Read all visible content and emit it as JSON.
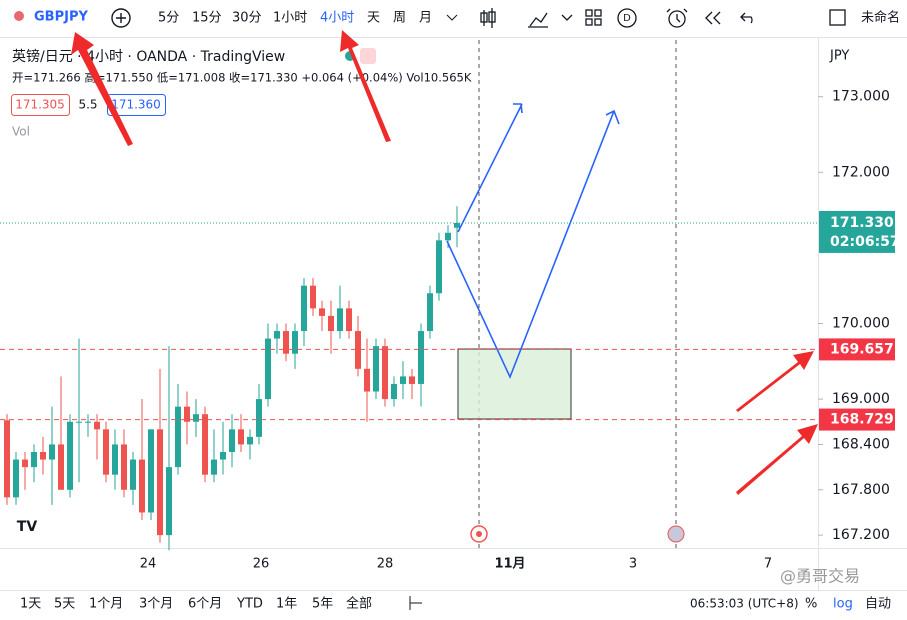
{
  "toolbar": {
    "symbol": "GBPJPY",
    "intervals": [
      "5分",
      "15分",
      "30分",
      "1小时",
      "4小时",
      "天",
      "周",
      "月"
    ],
    "layout_name": "未命名",
    "indicator_badge": "D"
  },
  "legend": {
    "title": "英镑/日元 · 4小时 · OANDA · TradingView",
    "ohlc": "开=171.266 高=171.550 低=171.008 收=171.330 +0.064 (+0.04%) Vol10.565K",
    "bid": "171.305",
    "spread": "5.5",
    "ask": "171.360",
    "vol": "Vol"
  },
  "chart_data": {
    "type": "candlestick",
    "currency": "JPY",
    "up_color": "#26a69a",
    "down_color": "#ef5350",
    "open": [
      168.72,
      167.7,
      168.2,
      168.1,
      168.3,
      168.2,
      168.4,
      167.8,
      168.7,
      168.7,
      168.7,
      168.6,
      168.0,
      168.4,
      167.8,
      168.2,
      167.5,
      168.6,
      167.2,
      168.1,
      168.9,
      168.7,
      168.8,
      168.0,
      168.2,
      168.3,
      168.6,
      168.4,
      168.5,
      169.0,
      169.8,
      169.9,
      169.6,
      169.9,
      170.5,
      170.2,
      170.1,
      169.9,
      170.2,
      169.9,
      169.4,
      169.1,
      169.7,
      169.0,
      169.2,
      169.3,
      169.2,
      169.9,
      170.4,
      171.1,
      171.266
    ],
    "high": [
      168.8,
      168.3,
      168.3,
      168.4,
      168.5,
      168.9,
      169.3,
      168.8,
      169.8,
      168.8,
      168.8,
      168.7,
      168.6,
      168.6,
      168.3,
      169.0,
      168.6,
      169.4,
      169.7,
      169.2,
      169.1,
      169.0,
      168.9,
      168.6,
      168.7,
      168.8,
      168.8,
      168.6,
      169.2,
      170.0,
      170.0,
      170.0,
      170.0,
      170.6,
      170.6,
      170.3,
      170.3,
      170.5,
      170.3,
      170.1,
      169.8,
      169.8,
      169.8,
      169.3,
      169.5,
      169.4,
      170.0,
      170.5,
      171.2,
      171.3,
      171.55
    ],
    "low": [
      167.6,
      167.6,
      167.8,
      167.9,
      168.0,
      167.6,
      167.8,
      167.7,
      167.9,
      168.5,
      168.2,
      167.9,
      167.8,
      167.7,
      167.6,
      167.4,
      167.4,
      167.1,
      167.0,
      168.0,
      168.4,
      168.5,
      167.9,
      167.9,
      168.0,
      168.1,
      168.3,
      168.2,
      168.4,
      168.9,
      169.6,
      169.5,
      169.4,
      169.7,
      170.1,
      169.9,
      169.6,
      169.8,
      169.8,
      169.3,
      168.7,
      169.0,
      168.9,
      168.9,
      169.0,
      169.0,
      168.9,
      169.8,
      170.3,
      171.0,
      171.008
    ],
    "close": [
      167.7,
      168.2,
      168.1,
      168.3,
      168.2,
      168.4,
      167.8,
      168.7,
      168.7,
      168.7,
      168.6,
      168.0,
      168.4,
      167.8,
      168.2,
      167.5,
      168.6,
      167.2,
      168.1,
      168.9,
      168.7,
      168.8,
      168.0,
      168.2,
      168.3,
      168.6,
      168.4,
      168.5,
      169.0,
      169.8,
      169.9,
      169.6,
      169.9,
      170.5,
      170.2,
      170.1,
      169.9,
      170.2,
      169.9,
      169.4,
      169.1,
      169.7,
      169.0,
      169.2,
      169.3,
      169.2,
      169.9,
      170.4,
      171.1,
      171.2,
      171.33
    ],
    "ylim": [
      167.03,
      173.75
    ],
    "yticks": [
      {
        "value": 173,
        "label": "173.000"
      },
      {
        "value": 172,
        "label": "172.000"
      },
      {
        "value": 170,
        "label": "170.000"
      },
      {
        "value": 169,
        "label": "169.000"
      },
      {
        "value": 168.4,
        "label": "168.400"
      },
      {
        "value": 167.8,
        "label": "167.800"
      },
      {
        "value": 167.2,
        "label": "167.200"
      }
    ],
    "price_lines": [
      {
        "value": 169.657,
        "label": "169.657"
      },
      {
        "value": 168.729,
        "label": "168.729"
      }
    ],
    "last_price": {
      "value": 171.33,
      "label": "171.330"
    },
    "countdown": "02:06:57",
    "xtick_labels": [
      "24",
      "26",
      "28",
      "11月",
      "3",
      "7"
    ]
  },
  "bottom_bar": {
    "ranges": [
      "1天",
      "5天",
      "1个月",
      "3个月",
      "6个月",
      "YTD",
      "1年",
      "5年",
      "全部"
    ],
    "time": "06:53:03 (UTC+8)",
    "percent": "%",
    "log": "log",
    "auto": "自动"
  },
  "watermark": "@勇哥交易"
}
